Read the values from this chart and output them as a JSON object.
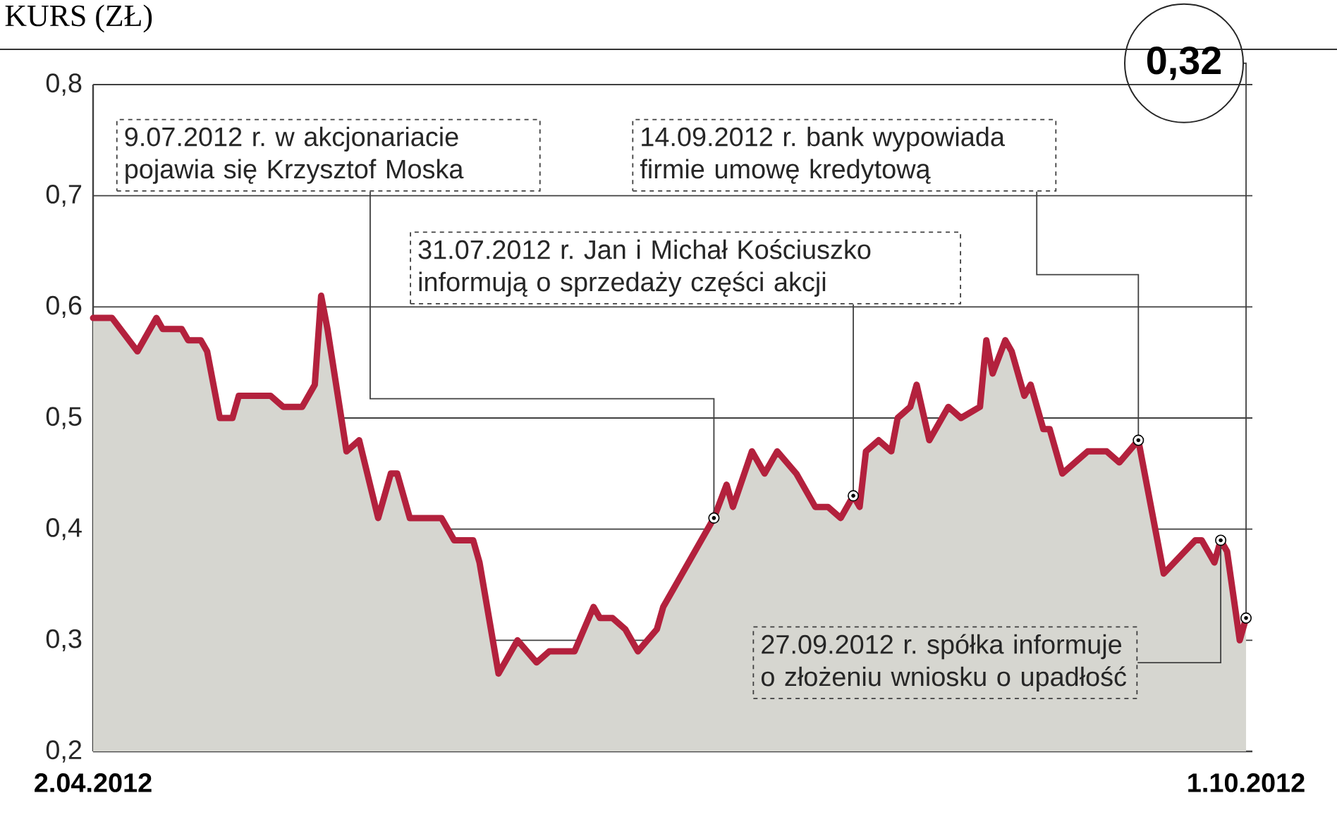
{
  "chart_data": {
    "type": "area",
    "title": "KURS (ZŁ)",
    "x": [
      "2012-04-02",
      "2012-04-05",
      "2012-04-09",
      "2012-04-12",
      "2012-04-13",
      "2012-04-16",
      "2012-04-17",
      "2012-04-19",
      "2012-04-20",
      "2012-04-22",
      "2012-04-24",
      "2012-04-25",
      "2012-04-30",
      "2012-05-02",
      "2012-05-05",
      "2012-05-07",
      "2012-05-08",
      "2012-05-09",
      "2012-05-12",
      "2012-05-14",
      "2012-05-17",
      "2012-05-19",
      "2012-05-20",
      "2012-05-22",
      "2012-05-27",
      "2012-05-29",
      "2012-06-01",
      "2012-06-02",
      "2012-06-05",
      "2012-06-08",
      "2012-06-11",
      "2012-06-13",
      "2012-06-17",
      "2012-06-20",
      "2012-06-21",
      "2012-06-23",
      "2012-06-25",
      "2012-06-27",
      "2012-06-30",
      "2012-07-01",
      "2012-07-04",
      "2012-07-09",
      "2012-07-11",
      "2012-07-12",
      "2012-07-15",
      "2012-07-17",
      "2012-07-19",
      "2012-07-22",
      "2012-07-25",
      "2012-07-27",
      "2012-07-29",
      "2012-07-31",
      "2012-08-01",
      "2012-08-02",
      "2012-08-04",
      "2012-08-06",
      "2012-08-07",
      "2012-08-09",
      "2012-08-10",
      "2012-08-12",
      "2012-08-15",
      "2012-08-17",
      "2012-08-20",
      "2012-08-21",
      "2012-08-22",
      "2012-08-24",
      "2012-08-25",
      "2012-08-27",
      "2012-08-28",
      "2012-08-30",
      "2012-08-31",
      "2012-09-02",
      "2012-09-06",
      "2012-09-09",
      "2012-09-11",
      "2012-09-14",
      "2012-09-18",
      "2012-09-23",
      "2012-09-24",
      "2012-09-26",
      "2012-09-27",
      "2012-09-28",
      "2012-09-30",
      "2012-10-01"
    ],
    "series": [
      {
        "color": "#b3213d",
        "values": [
          0.59,
          0.59,
          0.56,
          0.59,
          0.58,
          0.58,
          0.57,
          0.57,
          0.56,
          0.5,
          0.5,
          0.52,
          0.52,
          0.51,
          0.51,
          0.53,
          0.61,
          0.58,
          0.47,
          0.48,
          0.41,
          0.45,
          0.45,
          0.41,
          0.41,
          0.39,
          0.39,
          0.37,
          0.27,
          0.3,
          0.28,
          0.29,
          0.29,
          0.33,
          0.32,
          0.32,
          0.31,
          0.29,
          0.31,
          0.33,
          0.36,
          0.41,
          0.44,
          0.42,
          0.47,
          0.45,
          0.47,
          0.45,
          0.42,
          0.42,
          0.41,
          0.43,
          0.42,
          0.47,
          0.48,
          0.47,
          0.5,
          0.51,
          0.53,
          0.48,
          0.51,
          0.5,
          0.51,
          0.57,
          0.54,
          0.57,
          0.56,
          0.52,
          0.53,
          0.49,
          0.49,
          0.45,
          0.47,
          0.47,
          0.46,
          0.48,
          0.36,
          0.39,
          0.39,
          0.37,
          0.39,
          0.38,
          0.3,
          0.32
        ]
      }
    ],
    "xlim": [
      "2012-04-02",
      "2012-10-02"
    ],
    "xticks": [
      {
        "value": "2012-04-02",
        "label": "2.04.2012"
      },
      {
        "value": "2012-10-01",
        "label": "1.10.2012"
      }
    ],
    "ylim": [
      0.2,
      0.8
    ],
    "yticks": [
      {
        "value": 0.2,
        "label": "0,2"
      },
      {
        "value": 0.3,
        "label": "0,3"
      },
      {
        "value": 0.4,
        "label": "0,4"
      },
      {
        "value": 0.5,
        "label": "0,5"
      },
      {
        "value": 0.6,
        "label": "0,6"
      },
      {
        "value": 0.7,
        "label": "0,7"
      },
      {
        "value": 0.8,
        "label": "0,8"
      }
    ],
    "grid": "y",
    "annotations": [
      {
        "text": "9.07.2012 r. w akcjonariacie pojawia się Krzysztof Moska",
        "x": "2012-07-09",
        "y": 0.41
      },
      {
        "text": "31.07.2012 r. Jan i Michał Kościuszko informują o sprzedaży części akcji",
        "x": "2012-07-31",
        "y": 0.43
      },
      {
        "text": "14.09.2012 r. bank wypowiada firmie umowę kredytową",
        "x": "2012-09-14",
        "y": 0.48
      },
      {
        "text": "27.09.2012 r. spółka informuje o złożeniu wniosku o upadłość",
        "x": "2012-09-27",
        "y": 0.39
      },
      {
        "text": "0,32",
        "x": "2012-10-01",
        "y": 0.32
      }
    ]
  }
}
